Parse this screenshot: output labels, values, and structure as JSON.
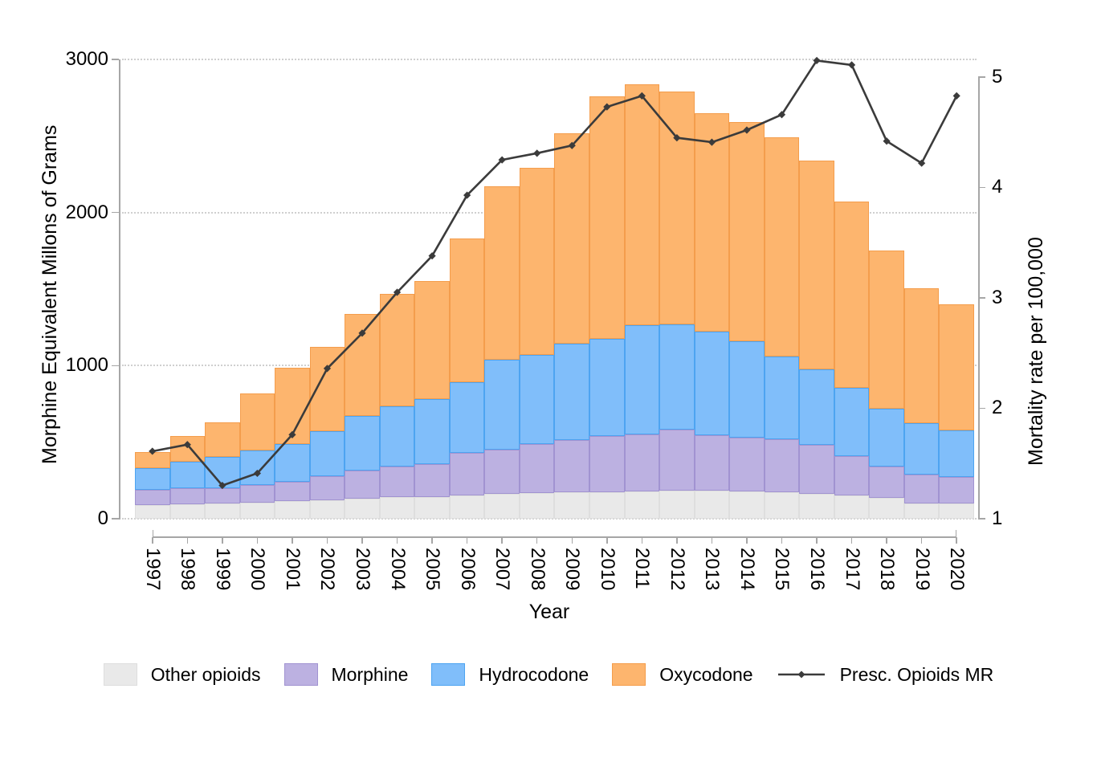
{
  "chart_data": {
    "type": "bar",
    "subtype": "stacked-bars-with-line-overlay",
    "title": "",
    "xlabel": "Year",
    "ylabel_left": "Morphine Equivalent Millons of Grams",
    "ylabel_right": "Mortality rate per 100,000",
    "ylim_left": [
      0,
      3000
    ],
    "yticks_left": [
      0,
      1000,
      2000,
      3000
    ],
    "ytick_labels_left": [
      "0",
      "1000",
      "2000",
      "3000"
    ],
    "ylim_right": [
      1,
      5
    ],
    "yticks_right": [
      1,
      2,
      3,
      4,
      5
    ],
    "ytick_labels_right": [
      "1",
      "2",
      "3",
      "4",
      "5"
    ],
    "grid": "horizontal dotted lines at left-axis ticks",
    "legend_position": "bottom",
    "categories": [
      1997,
      1998,
      1999,
      2000,
      2001,
      2002,
      2003,
      2004,
      2005,
      2006,
      2007,
      2008,
      2009,
      2010,
      2011,
      2012,
      2013,
      2014,
      2015,
      2016,
      2017,
      2018,
      2019,
      2020
    ],
    "series": [
      {
        "name": "Other opioids",
        "kind": "bar",
        "axis": "left",
        "fill": "#e9e9e9",
        "border": "#dedede",
        "values": [
          88,
          96,
          98,
          105,
          115,
          122,
          133,
          140,
          140,
          151,
          163,
          168,
          172,
          175,
          180,
          185,
          185,
          180,
          172,
          163,
          151,
          136,
          101,
          98
        ]
      },
      {
        "name": "Morphine",
        "kind": "bar",
        "axis": "left",
        "fill": "#bcb1e1",
        "border": "#a193d1",
        "values": [
          101,
          102,
          103,
          115,
          126,
          158,
          182,
          203,
          219,
          278,
          288,
          322,
          341,
          364,
          371,
          398,
          359,
          350,
          346,
          318,
          260,
          205,
          189,
          176
        ]
      },
      {
        "name": "Hydrocodone",
        "kind": "bar",
        "axis": "left",
        "fill": "#80befa",
        "border": "#4da4f1",
        "values": [
          140,
          175,
          202,
          228,
          249,
          290,
          355,
          391,
          425,
          465,
          587,
          582,
          630,
          638,
          714,
          687,
          677,
          630,
          542,
          495,
          443,
          378,
          336,
          301
        ]
      },
      {
        "name": "Oxycodone",
        "kind": "bar",
        "axis": "left",
        "fill": "#fdb56e",
        "border": "#f49d4c",
        "values": [
          108,
          167,
          227,
          372,
          495,
          550,
          670,
          736,
          766,
          936,
          1132,
          1218,
          1377,
          1583,
          1575,
          1520,
          1429,
          1430,
          1430,
          1364,
          1216,
          1031,
          879,
          823
        ]
      },
      {
        "name": "Presc. Opioids MR",
        "kind": "line",
        "axis": "right",
        "color": "#3b3b3b",
        "values": [
          1.61,
          1.67,
          1.3,
          1.41,
          1.76,
          2.36,
          2.68,
          3.05,
          3.38,
          3.93,
          4.25,
          4.31,
          4.38,
          4.73,
          4.83,
          4.45,
          4.41,
          4.52,
          4.66,
          5.15,
          5.11,
          4.42,
          4.22,
          4.83
        ]
      }
    ],
    "stack_totals": [
      437,
      540,
      630,
      820,
      985,
      1120,
      1340,
      1470,
      1550,
      1830,
      2170,
      2290,
      2520,
      2760,
      2840,
      2790,
      2650,
      2590,
      2490,
      2340,
      2070,
      1750,
      1505,
      1398
    ]
  },
  "style": {
    "axis_line_color": "#a6a6a6",
    "gridline_color": "#cfcfcf",
    "text_color": "#000000",
    "background": "#ffffff",
    "line_color": "#3b3b3b"
  }
}
